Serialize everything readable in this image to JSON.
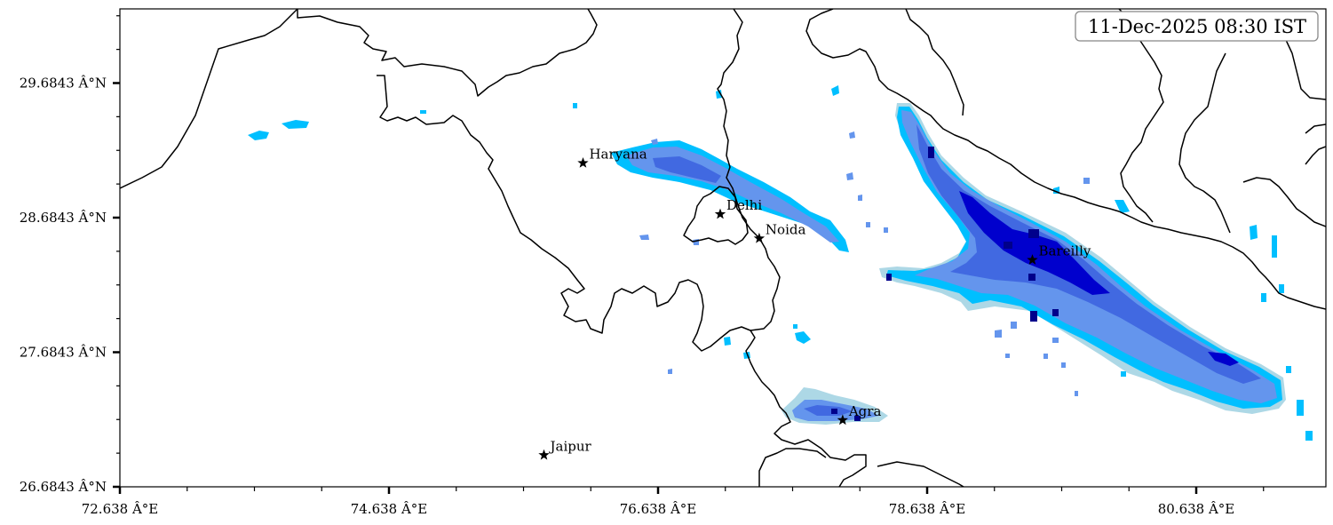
{
  "timestamp": "11-Dec-2025 08:30 IST",
  "axes": {
    "x_ticks": [
      "72.638 Â°E",
      "74.638 Â°E",
      "76.638 Â°E",
      "78.638 Â°E",
      "80.638 Â°E"
    ],
    "y_ticks": [
      "29.6843 Â°N",
      "28.6843 Â°N",
      "27.6843 Â°N",
      "26.6843 Â°N"
    ]
  },
  "cities": [
    {
      "name": "Haryana",
      "lon": 76.08,
      "lat": 29.09
    },
    {
      "name": "Delhi",
      "lon": 77.1,
      "lat": 28.71
    },
    {
      "name": "Noida",
      "lon": 77.39,
      "lat": 28.53
    },
    {
      "name": "Bareilly",
      "lon": 79.42,
      "lat": 28.37
    },
    {
      "name": "Agra",
      "lon": 78.01,
      "lat": 27.18
    },
    {
      "name": "Jaipur",
      "lon": 75.79,
      "lat": 26.92
    }
  ],
  "colors": {
    "level1": "#add8e6",
    "level2": "#00bfff",
    "level3": "#6495ed",
    "level4": "#4169e1",
    "level5": "#0000cd",
    "level6": "#00008b"
  }
}
